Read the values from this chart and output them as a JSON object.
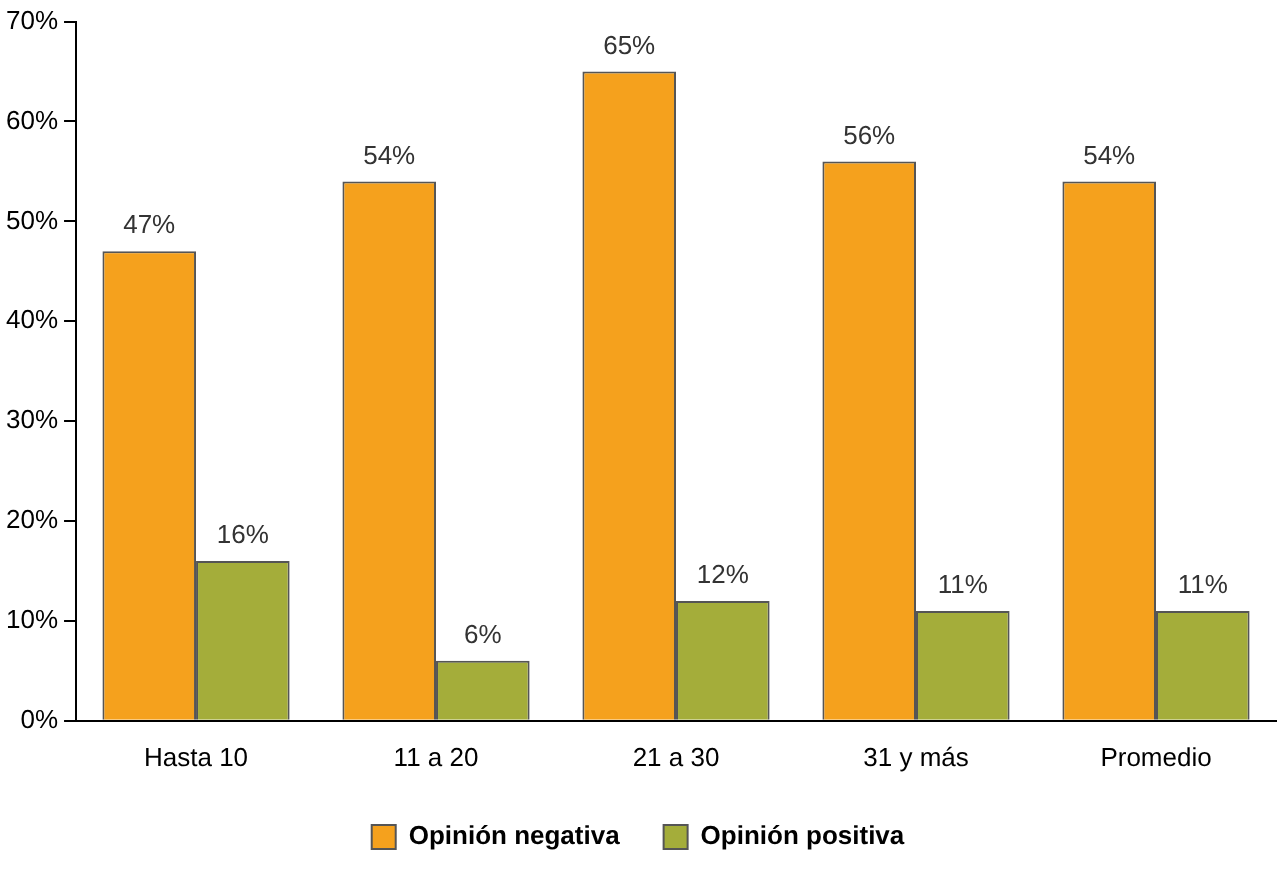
{
  "chart_data": {
    "type": "bar",
    "categories": [
      "Hasta 10",
      "11 a 20",
      "21 a 30",
      "31 y más",
      "Promedio"
    ],
    "series": [
      {
        "name": "Opinión negativa",
        "color": "#f5a11d",
        "values": [
          47,
          54,
          65,
          56,
          54
        ],
        "value_labels": [
          "47%",
          "54%",
          "65%",
          "56%",
          "54%"
        ]
      },
      {
        "name": "Opinión positiva",
        "color": "#a4ad3a",
        "values": [
          16,
          6,
          12,
          11,
          11
        ],
        "value_labels": [
          "16%",
          "6%",
          "12%",
          "11%",
          "11%"
        ]
      }
    ],
    "ylim": [
      0,
      70
    ],
    "yticks": [
      {
        "value": 0,
        "label": "0%"
      },
      {
        "value": 10,
        "label": "10%"
      },
      {
        "value": 20,
        "label": "20%"
      },
      {
        "value": 30,
        "label": "30%"
      },
      {
        "value": 40,
        "label": "40%"
      },
      {
        "value": 50,
        "label": "50%"
      },
      {
        "value": 60,
        "label": "60%"
      },
      {
        "value": 70,
        "label": "70%"
      }
    ],
    "grid": false,
    "legend": "bottom"
  }
}
